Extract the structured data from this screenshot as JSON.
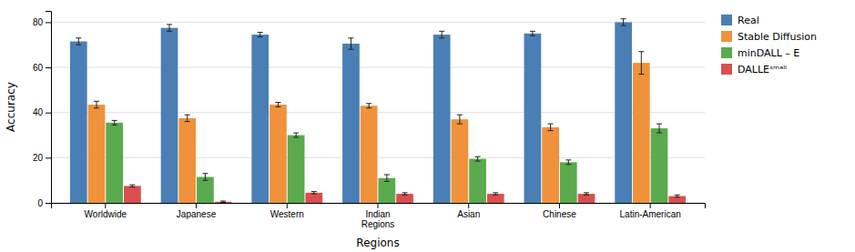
{
  "chart_data": {
    "type": "bar",
    "categories": [
      "Worldwide",
      "Japanese",
      "Western",
      "Indian\nRegions",
      "Asian",
      "Chinese",
      "Latin-American"
    ],
    "series": [
      {
        "name": "Real",
        "color": "#4a7fb5",
        "values": [
          71.5,
          77.5,
          74.5,
          70.5,
          74.5,
          75.0,
          80.0
        ],
        "errors": [
          1.5,
          1.5,
          1.0,
          2.5,
          1.5,
          1.0,
          1.5
        ]
      },
      {
        "name": "Stable Diffusion",
        "color": "#f0923b",
        "values": [
          43.5,
          37.5,
          43.5,
          43.0,
          37.0,
          33.5,
          62.0
        ],
        "errors": [
          1.5,
          1.5,
          1.0,
          1.0,
          2.0,
          1.5,
          5.0
        ]
      },
      {
        "name": "minDALL – E",
        "color": "#5aaa4e",
        "values": [
          35.5,
          11.5,
          30.0,
          11.0,
          19.5,
          18.0,
          33.0
        ],
        "errors": [
          1.0,
          1.5,
          1.0,
          1.5,
          1.0,
          1.0,
          2.0
        ]
      },
      {
        "name": "DALLEˢᵐᵃˡˡ",
        "color": "#d94f4f",
        "values": [
          7.5,
          0.5,
          4.5,
          4.0,
          4.0,
          4.0,
          3.0
        ],
        "errors": [
          0.5,
          0.3,
          0.5,
          0.5,
          0.5,
          0.5,
          0.5
        ]
      }
    ],
    "xlabel": "Regions",
    "ylabel": "Accuracy",
    "ylim": [
      0,
      85
    ],
    "yticks": [
      0,
      20,
      40,
      60,
      80
    ],
    "grid": true,
    "legend": "upper right"
  }
}
